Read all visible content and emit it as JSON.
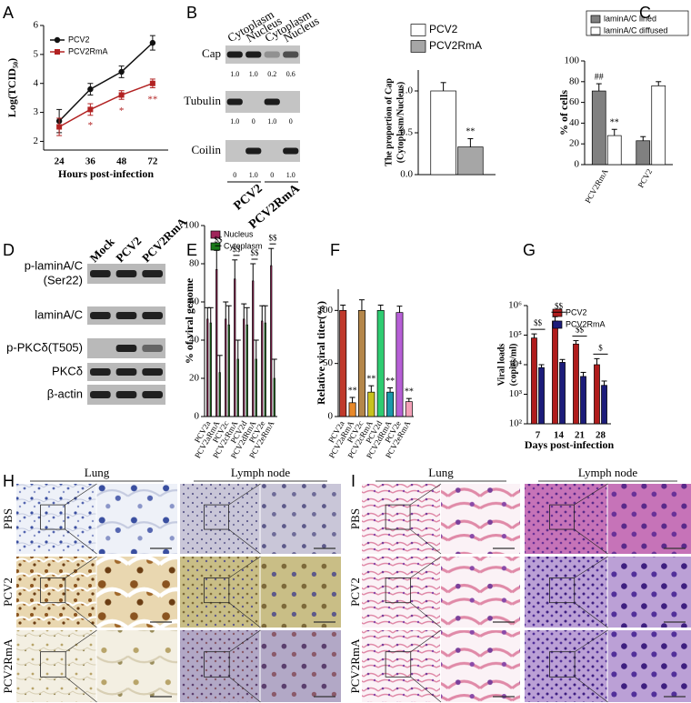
{
  "panel_labels": [
    "A",
    "B",
    "C",
    "D",
    "E",
    "F",
    "G",
    "H",
    "I"
  ],
  "chart_data": [
    {
      "type": "line",
      "xlabel": "Hours post-infection",
      "ylabel": "Log(TCID₅₀)",
      "categories": [
        "24",
        "36",
        "48",
        "72"
      ],
      "ylim": [
        1.7,
        6
      ],
      "yticks": [
        2,
        3,
        4,
        5,
        6
      ],
      "series": [
        {
          "name": "PCV2",
          "color": "#111111",
          "marker": "circle",
          "values": [
            2.7,
            3.8,
            4.4,
            5.4
          ],
          "errors": [
            0.4,
            0.2,
            0.2,
            0.25
          ]
        },
        {
          "name": "PCV2RmA",
          "color": "#b22222",
          "marker": "square",
          "values": [
            2.5,
            3.1,
            3.6,
            4.0
          ],
          "errors": [
            0.3,
            0.2,
            0.15,
            0.15
          ]
        }
      ],
      "annotations": [
        "*",
        "*",
        "**"
      ]
    },
    {
      "type": "bar",
      "ylabel": [
        "The proportion of Cap",
        "(Cytoplasm/Nucleus)"
      ],
      "categories": [
        null
      ],
      "ylim": [
        0,
        1.25
      ],
      "yticks": [
        {
          "value": 0,
          "label": "0.0"
        },
        {
          "value": 0.5,
          "label": "0.5"
        },
        {
          "value": 1,
          "label": "1.0"
        }
      ],
      "series": [
        {
          "name": "PCV2",
          "color": "#ffffff",
          "values": [
            1.0
          ],
          "errors": [
            0.1
          ]
        },
        {
          "name": "PCV2RmA",
          "color": "#a6a6a6",
          "values": [
            0.33
          ],
          "errors": [
            0.1
          ]
        }
      ],
      "annotations": [
        "**"
      ]
    },
    {
      "type": "bar",
      "ylabel": "% of cells",
      "categories": [
        "PCV2RmA",
        "PCV2"
      ],
      "ylim": [
        0,
        100
      ],
      "yticks": [
        0,
        20,
        40,
        60,
        80,
        100
      ],
      "series": [
        {
          "name": "laminA/C lined",
          "color": "#808080",
          "values": [
            71,
            23
          ],
          "errors": [
            7,
            4
          ]
        },
        {
          "name": "laminA/C diffused",
          "color": "#ffffff",
          "values": [
            28,
            76
          ],
          "errors": [
            6,
            4
          ]
        }
      ],
      "annotations": [
        "##",
        "**"
      ]
    },
    {
      "type": "bar",
      "ylabel": "% of viral genome",
      "categories": [
        "PCV2a",
        "PCV2aRmA",
        "PCV2c",
        "PCV2cRmA",
        "PCV2d",
        "PCV2dRmA",
        "PCV2e",
        "PCV2eRmA"
      ],
      "ylim": [
        0,
        100
      ],
      "yticks": [
        0,
        20,
        40,
        60,
        80,
        100
      ],
      "series": [
        {
          "name": "Nucleus",
          "color": "#a0245a",
          "values": [
            51,
            77,
            51,
            72,
            51,
            71,
            50,
            79
          ],
          "errors": [
            6,
            10,
            9,
            10,
            8,
            9,
            8,
            9
          ]
        },
        {
          "name": "Cytoplasm",
          "color": "#1a7a1a",
          "values": [
            49,
            23,
            48,
            30,
            48,
            30,
            49,
            20
          ],
          "errors": [
            8,
            9,
            10,
            10,
            9,
            10,
            9,
            10
          ]
        }
      ],
      "annotations": [
        "$$",
        "$$",
        "$$",
        "$$"
      ]
    },
    {
      "type": "bar",
      "ylabel": "Relative viral titer(%)",
      "categories": [
        "PCV2a",
        "PCV2aRmA",
        "PCV2c",
        "PCV2cRmA",
        "PCV2d",
        "PCV2dRmA",
        "PCV2e",
        "PCV2eRmA"
      ],
      "values": [
        100,
        13,
        100,
        23,
        100,
        23,
        98,
        14
      ],
      "errors": [
        5,
        5,
        10,
        6,
        5,
        4,
        6,
        3
      ],
      "colors": [
        "#c0392b",
        "#e8892a",
        "#b5874a",
        "#c9c21e",
        "#2ecc71",
        "#1a9aaa",
        "#b65fd6",
        "#f4a0b8"
      ],
      "ylim": [
        0,
        120
      ],
      "yticks": [
        0,
        50,
        100
      ],
      "annotations": [
        "**",
        "**",
        "**",
        "**"
      ]
    },
    {
      "type": "bar",
      "log_y": true,
      "xlabel": "Days post-infection",
      "ylabel": [
        "Viral loads",
        "(copies/ml)"
      ],
      "categories": [
        "7",
        "14",
        "21",
        "28"
      ],
      "ylim": [
        100,
        1000000
      ],
      "yticks": [
        {
          "value": 100,
          "label": "10²"
        },
        {
          "value": 1000,
          "label": "10³"
        },
        {
          "value": 10000,
          "label": "10⁴"
        },
        {
          "value": 100000,
          "label": "10⁵"
        },
        {
          "value": 1000000,
          "label": "10⁶"
        }
      ],
      "series": [
        {
          "name": "PCV2",
          "color": "#b01c1c",
          "values": [
            80000,
            300000,
            50000,
            10000
          ],
          "errors": [
            30000,
            120000,
            15000,
            6000
          ]
        },
        {
          "name": "PCV2RmA",
          "color": "#1c1c7a",
          "values": [
            8000,
            12000,
            4000,
            2000
          ],
          "errors": [
            2000,
            3000,
            1500,
            800
          ]
        }
      ],
      "annotations": [
        "$$",
        "$$",
        "$$",
        "$"
      ]
    }
  ],
  "blots": [
    {
      "columns": [
        "Cytoplasm",
        "Nucleus",
        "Cytoplasm",
        "Nucleus"
      ],
      "rows": [
        {
          "label": "Cap",
          "quantification": [
            "1.0",
            "1.0",
            "0.2",
            "0.6"
          ]
        },
        {
          "label": "Tubulin",
          "quantification": [
            "1.0",
            "0",
            "1.0",
            "0"
          ]
        },
        {
          "label": "Coilin",
          "quantification": [
            "0",
            "1.0",
            "0",
            "1.0"
          ]
        }
      ],
      "groups": [
        "PCV2",
        "PCV2RmA"
      ]
    },
    {
      "columns": [
        "Mock",
        "PCV2",
        "PCV2RmA"
      ],
      "rows": [
        {
          "label": [
            "p-laminA/C",
            "(Ser22)"
          ]
        },
        {
          "label": [
            "laminA/C"
          ]
        },
        {
          "label": [
            "p-PKCδ(T505)"
          ]
        },
        {
          "label": [
            "PKCδ"
          ]
        },
        {
          "label": [
            "β-actin"
          ]
        }
      ]
    }
  ],
  "histology": [
    {
      "columns": [
        "Lung",
        "Lymph node"
      ],
      "rows": [
        "PBS",
        "PCV2",
        "PCV2RmA"
      ]
    },
    {
      "columns": [
        "Lung",
        "Lymph node"
      ],
      "rows": [
        "PBS",
        "PCV2",
        "PCV2RmA"
      ]
    }
  ]
}
